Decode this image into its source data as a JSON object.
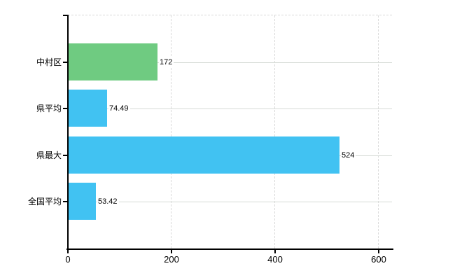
{
  "chart_data": {
    "type": "bar",
    "orientation": "horizontal",
    "title": "",
    "xlabel": "",
    "ylabel": "",
    "categories": [
      "中村区",
      "県平均",
      "県最大",
      "全国平均"
    ],
    "values": [
      172,
      74.49,
      524,
      53.42
    ],
    "value_labels": [
      "172",
      "74.49",
      "524",
      "53.42"
    ],
    "bar_colors": [
      "#6FCB81",
      "#41C2F2",
      "#41C2F2",
      "#41C2F2"
    ],
    "x_ticks": [
      0,
      200,
      400,
      600
    ],
    "x_tick_labels": [
      "0",
      "200",
      "400",
      "600"
    ],
    "xlim": [
      0,
      627
    ],
    "grid": {
      "horizontal": "solid",
      "vertical": "dashed",
      "top_border": "dashed"
    },
    "legend": "none",
    "colors": {
      "axis": "#000000",
      "grid_horizontal": "#d6dbd6",
      "grid_vertical": "#d9d9d9",
      "text": "#000000",
      "background": "#ffffff"
    }
  }
}
